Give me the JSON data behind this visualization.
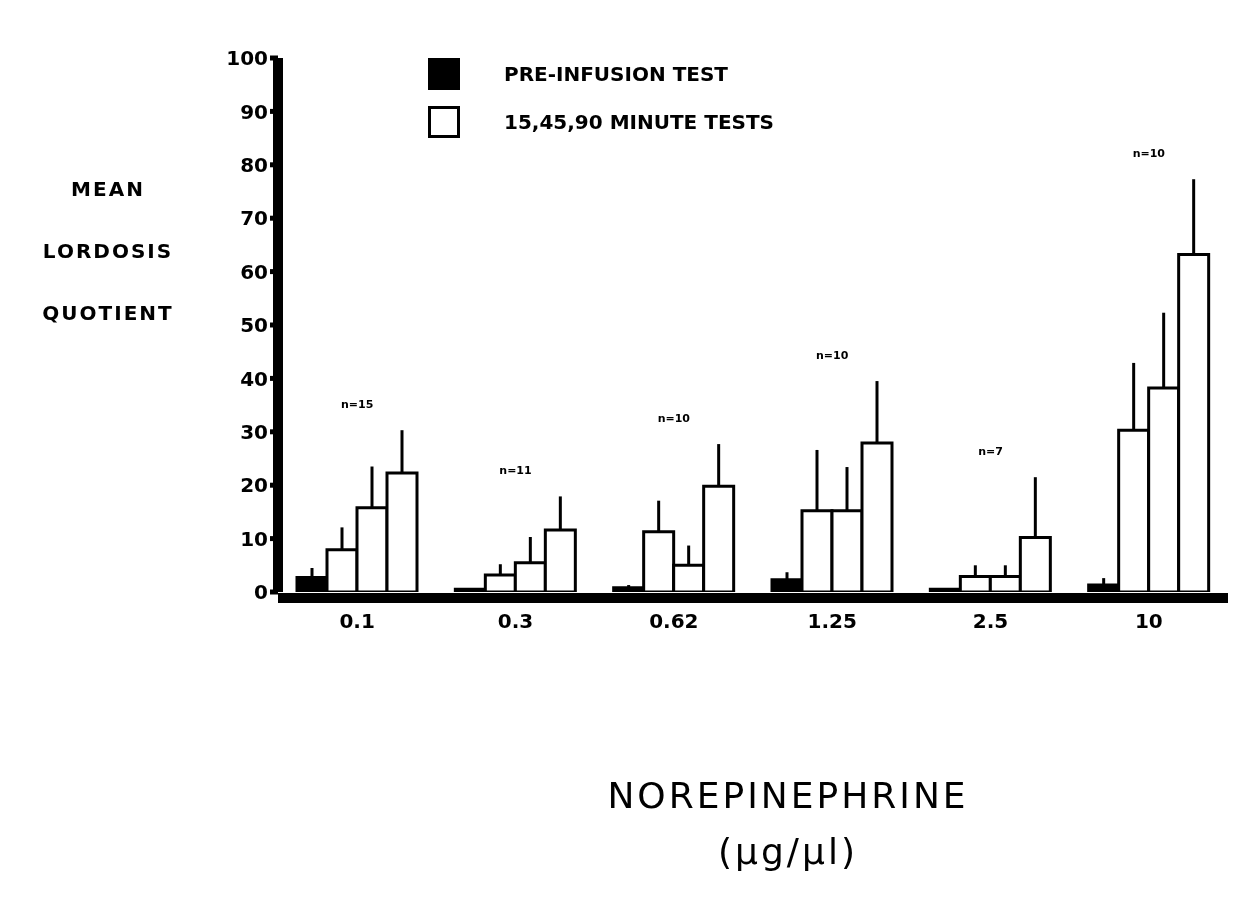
{
  "chart_data": {
    "type": "bar",
    "xlabel": "NOREPINEPHRINE\n(µg/µl)",
    "ylabel": "MEAN\nLORDOSIS\nQUOTIENT",
    "categories": [
      "0.1",
      "0.3",
      "0.62",
      "1.25",
      "2.5",
      "10"
    ],
    "series": [
      {
        "name": "PRE-INFUSION TEST",
        "color": "#000000",
        "values": [
          2.7,
          0.5,
          0.8,
          2.3,
          0.5,
          1.3
        ],
        "errors": [
          [
            2.7,
            4.5
          ],
          null,
          [
            0.8,
            1.3
          ],
          [
            2.3,
            3.7
          ],
          null,
          [
            1.3,
            2.6
          ]
        ]
      },
      {
        "name": "15,45,90 MINUTE TESTS",
        "color": "#ffffff",
        "values": [
          7.9,
          3.2,
          11.3,
          15.2,
          2.9,
          30.3
        ],
        "errors": [
          [
            7.9,
            12.1
          ],
          [
            3.2,
            5.2
          ],
          [
            11.3,
            17.1
          ],
          [
            15.2,
            26.6
          ],
          [
            2.9,
            5
          ],
          [
            30.3,
            42.9
          ]
        ]
      },
      {
        "color": "#ffffff",
        "values": [
          15.8,
          5.5,
          5,
          15.2,
          2.9,
          38.2
        ],
        "errors": [
          [
            15.8,
            23.5
          ],
          [
            5.5,
            10.3
          ],
          [
            5,
            8.7
          ],
          [
            15.2,
            23.4
          ],
          [
            2.9,
            5
          ],
          [
            38.2,
            52.3
          ]
        ]
      },
      {
        "color": "#ffffff",
        "values": [
          22.3,
          11.6,
          19.8,
          27.9,
          10.2,
          63.2
        ],
        "errors": [
          [
            22.3,
            30.3
          ],
          [
            11.6,
            17.9
          ],
          [
            19.8,
            27.7
          ],
          [
            27.9,
            39.5
          ],
          [
            10.2,
            21.5
          ],
          [
            63.2,
            77.3
          ]
        ]
      }
    ],
    "ylim": [
      0,
      100
    ],
    "yticks": [
      0,
      10,
      20,
      30,
      40,
      50,
      60,
      70,
      80,
      90,
      100
    ],
    "grid": false,
    "legend": "top",
    "annotations": [
      "n=15",
      "n=11",
      "n=10",
      "n=10",
      "n=7",
      "n=10"
    ]
  }
}
